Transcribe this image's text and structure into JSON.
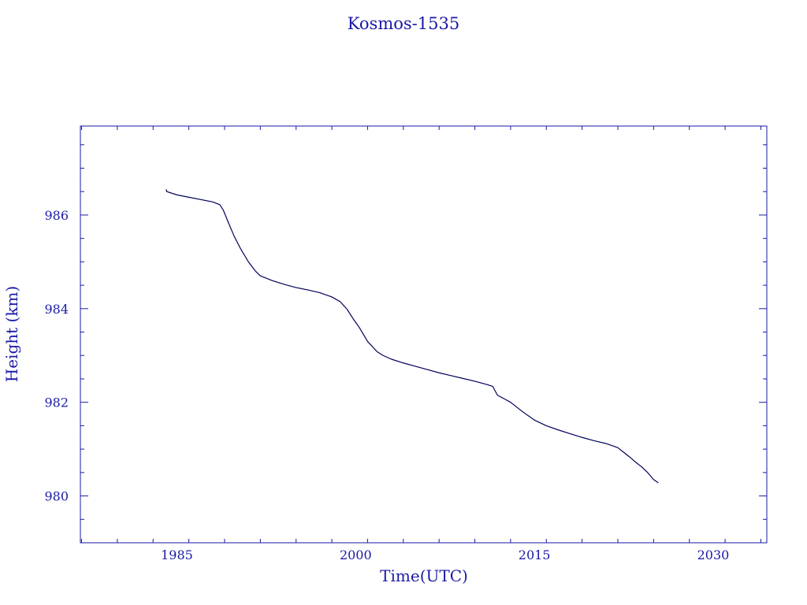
{
  "chart_data": {
    "type": "line",
    "title": "Kosmos-1535",
    "xlabel": "Time(UTC)",
    "ylabel": "Height (km)",
    "xlim": [
      1976.9,
      2034.5
    ],
    "ylim": [
      979.0,
      987.9
    ],
    "x_ticks": [
      1985,
      2000,
      2015,
      2030
    ],
    "y_ticks": [
      980,
      982,
      984,
      986
    ],
    "x_minor_step": 3,
    "y_minor_step": 0.5,
    "grid": false,
    "colors": {
      "line": "#00005a",
      "axes": "#1a1aa6",
      "text": "#1a1aa6"
    },
    "series": [
      {
        "x": [
          1984.1,
          1984.15,
          1985,
          1986,
          1987,
          1988,
          1988.6,
          1988.9,
          1989.3,
          1989.8,
          1990.3,
          1991.0,
          1991.6,
          1992.0,
          1993.0,
          1994.0,
          1995.0,
          1996.0,
          1997.0,
          1998.0,
          1998.7,
          1999.3,
          1999.8,
          2000.3,
          2001.0,
          2001.8,
          2002.3,
          2003.0,
          2004.0,
          2005.0,
          2006.0,
          2007.0,
          2008.0,
          2009.0,
          2010.0,
          2011.0,
          2011.5,
          2011.9,
          2012.5,
          2013.0,
          2014.0,
          2015.0,
          2016.0,
          2017.0,
          2018.0,
          2019.0,
          2020.0,
          2021.0,
          2022.0,
          2022.5,
          2023.0,
          2023.5,
          2024.0,
          2024.5,
          2025.0,
          2025.4
        ],
        "y": [
          986.55,
          986.5,
          986.43,
          986.38,
          986.33,
          986.28,
          986.22,
          986.1,
          985.85,
          985.55,
          985.3,
          985.0,
          984.8,
          984.7,
          984.6,
          984.52,
          984.45,
          984.4,
          984.34,
          984.25,
          984.15,
          983.98,
          983.78,
          983.6,
          983.3,
          983.08,
          983.0,
          982.92,
          982.84,
          982.77,
          982.7,
          982.63,
          982.57,
          982.51,
          982.45,
          982.38,
          982.34,
          982.15,
          982.07,
          982.0,
          981.8,
          981.62,
          981.5,
          981.41,
          981.33,
          981.25,
          981.18,
          981.12,
          981.03,
          980.93,
          980.83,
          980.72,
          980.62,
          980.5,
          980.35,
          980.28
        ]
      }
    ]
  }
}
